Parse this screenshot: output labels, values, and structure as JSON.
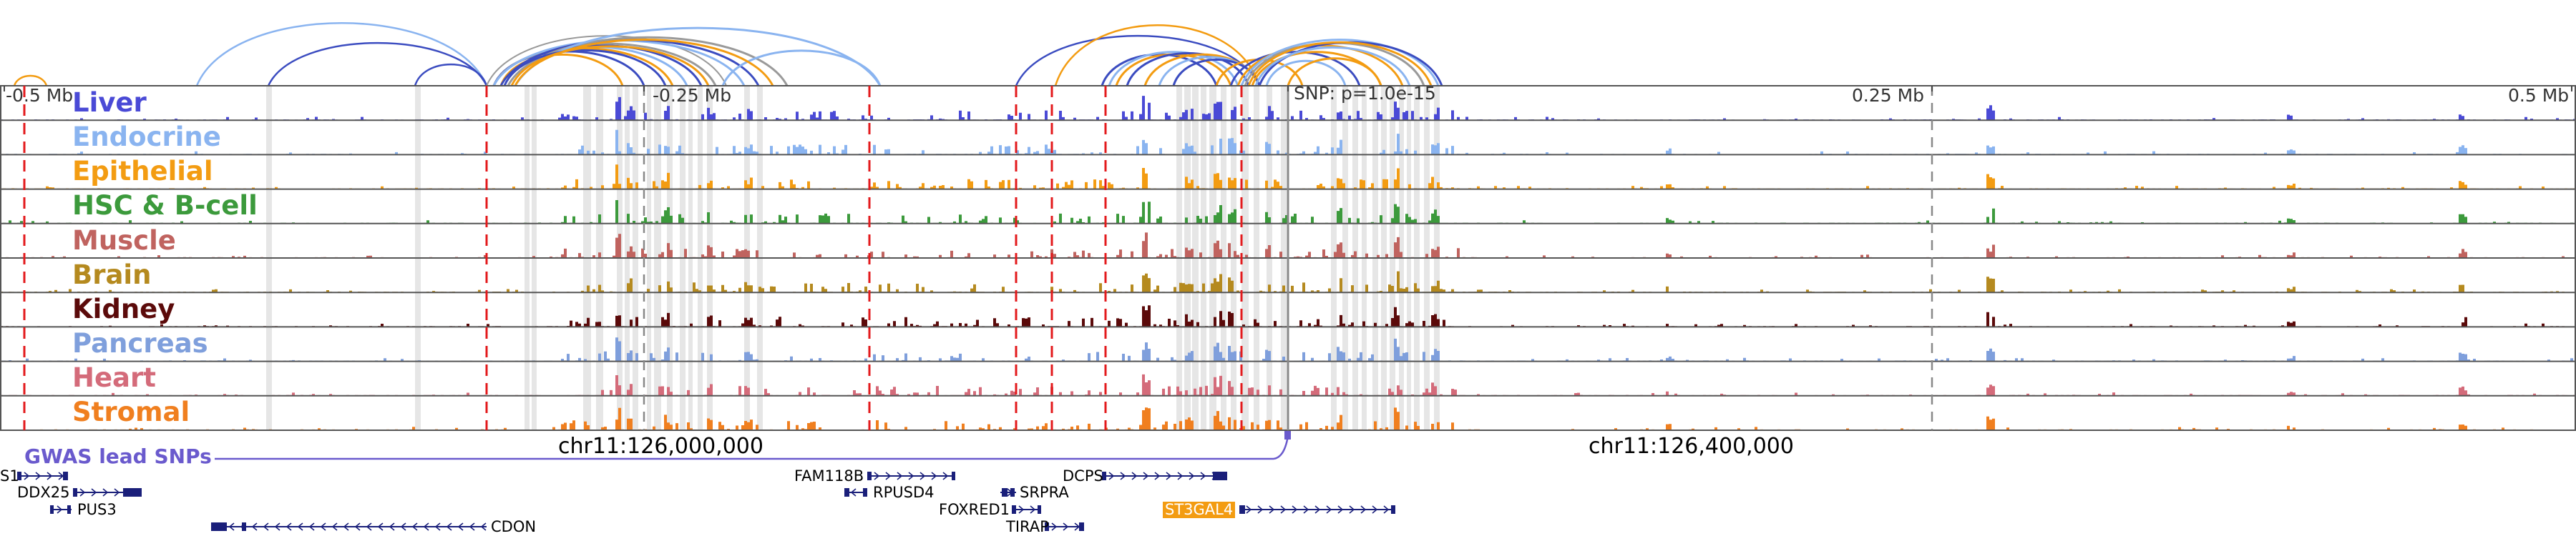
{
  "tracks": [
    {
      "name": "Liver",
      "color": "#4a4ad6"
    },
    {
      "name": "Endocrine",
      "color": "#8ab4f0"
    },
    {
      "name": "Epithelial",
      "color": "#f39c12"
    },
    {
      "name": "HSC & B-cell",
      "color": "#3c9a3c"
    },
    {
      "name": "Muscle",
      "color": "#c0635f"
    },
    {
      "name": "Brain",
      "color": "#b58a1f"
    },
    {
      "name": "Kidney",
      "color": "#5b0a0a"
    },
    {
      "name": "Pancreas",
      "color": "#7f9fdc"
    },
    {
      "name": "Heart",
      "color": "#d46b7a"
    },
    {
      "name": "Stromal",
      "color": "#f07f1f"
    }
  ],
  "axis_labels": {
    "left_far": "-0.5 Mb",
    "left_near": "-0.25 Mb",
    "snp": "SNP: p=1.0e-15",
    "right_near": "0.25 Mb",
    "right_far": "0.5 Mb"
  },
  "coordinates": {
    "left": "chr11:126,000,000",
    "right": "chr11:126,400,000"
  },
  "gwas": {
    "label": "GWAS lead SNPs",
    "color": "#6a5acd"
  },
  "genes": [
    {
      "name": "S1"
    },
    {
      "name": "DDX25"
    },
    {
      "name": "PUS3"
    },
    {
      "name": "CDON"
    },
    {
      "name": "FAM118B"
    },
    {
      "name": "RPUSD4"
    },
    {
      "name": "FOXRED1"
    },
    {
      "name": "TIRAP"
    },
    {
      "name": "DCPS"
    },
    {
      "name": "SRPRA"
    },
    {
      "name": "ST3GAL4",
      "highlight": true
    }
  ],
  "colors": {
    "arc_blue": "#3b4cc0",
    "arc_light": "#8ab4f0",
    "arc_orange": "#f39c12",
    "arc_gray": "#9a9a9a",
    "dashed_red": "#e31a1c",
    "gene_model": "#1a1f7a"
  }
}
